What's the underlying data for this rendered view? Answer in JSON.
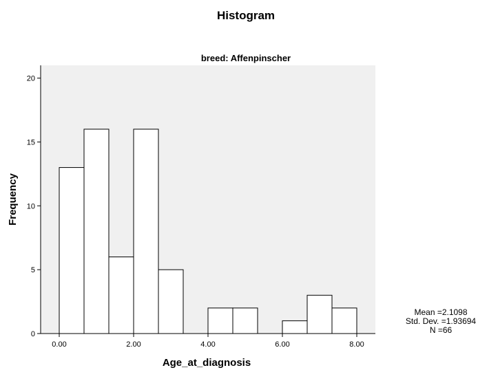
{
  "chart_data": {
    "type": "bar",
    "title": "Histogram",
    "subtitle": "breed: Affenpinscher",
    "xlabel": "Age_at_diagnosis",
    "ylabel": "Frequency",
    "bin_width": 0.6667,
    "bins": [
      {
        "start": 0.0,
        "end": 0.6667,
        "value": 13
      },
      {
        "start": 0.6667,
        "end": 1.3333,
        "value": 16
      },
      {
        "start": 1.3333,
        "end": 2.0,
        "value": 6
      },
      {
        "start": 2.0,
        "end": 2.6667,
        "value": 16
      },
      {
        "start": 2.6667,
        "end": 3.3333,
        "value": 5
      },
      {
        "start": 3.3333,
        "end": 4.0,
        "value": 0
      },
      {
        "start": 4.0,
        "end": 4.6667,
        "value": 2
      },
      {
        "start": 4.6667,
        "end": 5.3333,
        "value": 2
      },
      {
        "start": 5.3333,
        "end": 6.0,
        "value": 0
      },
      {
        "start": 6.0,
        "end": 6.6667,
        "value": 1
      },
      {
        "start": 6.6667,
        "end": 7.3333,
        "value": 3
      },
      {
        "start": 7.3333,
        "end": 8.0,
        "value": 2
      }
    ],
    "xlim": [
      -0.5,
      8.5
    ],
    "ylim": [
      0,
      21
    ],
    "xticks": [
      0,
      2,
      4,
      6,
      8
    ],
    "xtick_labels": [
      "0.00",
      "2.00",
      "4.00",
      "6.00",
      "8.00"
    ],
    "yticks": [
      0,
      5,
      10,
      15,
      20
    ],
    "ytick_labels": [
      "0",
      "5",
      "10",
      "15",
      "20"
    ],
    "stats": {
      "mean": "Mean =2.1098",
      "std": "Std. Dev. =1.93694",
      "n": "N =66"
    },
    "grid": false,
    "colors": {
      "plot_background": "#f0f0f0",
      "bar_fill": "#ffffff",
      "bar_stroke": "#000000"
    }
  }
}
